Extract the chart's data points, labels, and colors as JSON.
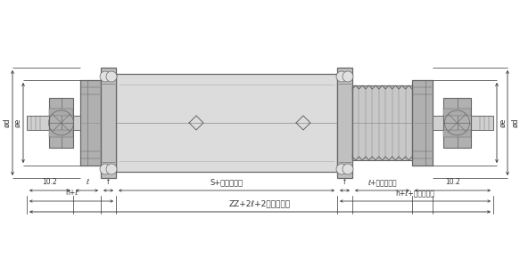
{
  "bg_color": "#ffffff",
  "line_color": "#666666",
  "dim_color": "#333333",
  "figsize": [
    5.83,
    3.0
  ],
  "dpi": 100,
  "labels": {
    "dim_10_2_left": "10.2",
    "dim_l_left": "ℓ",
    "dim_f_left": "f",
    "dim_hplusl": "h+ℓ",
    "dim_S": "S+ストローク",
    "dim_f_right": "f",
    "dim_l_stroke_right": "ℓ+ストローク",
    "dim_10_2_right": "10.2",
    "dim_hplusl_stroke": "h+ℓ+ストローク",
    "dim_ZZ": "ZZ+2ℓ+2ストローク",
    "label_d": "ød",
    "label_oe": "øe"
  },
  "gray_fill": "#c0c0c0",
  "gray_light": "#e0e0e0",
  "gray_dark": "#999999",
  "gray_mid": "#b0b0b0"
}
